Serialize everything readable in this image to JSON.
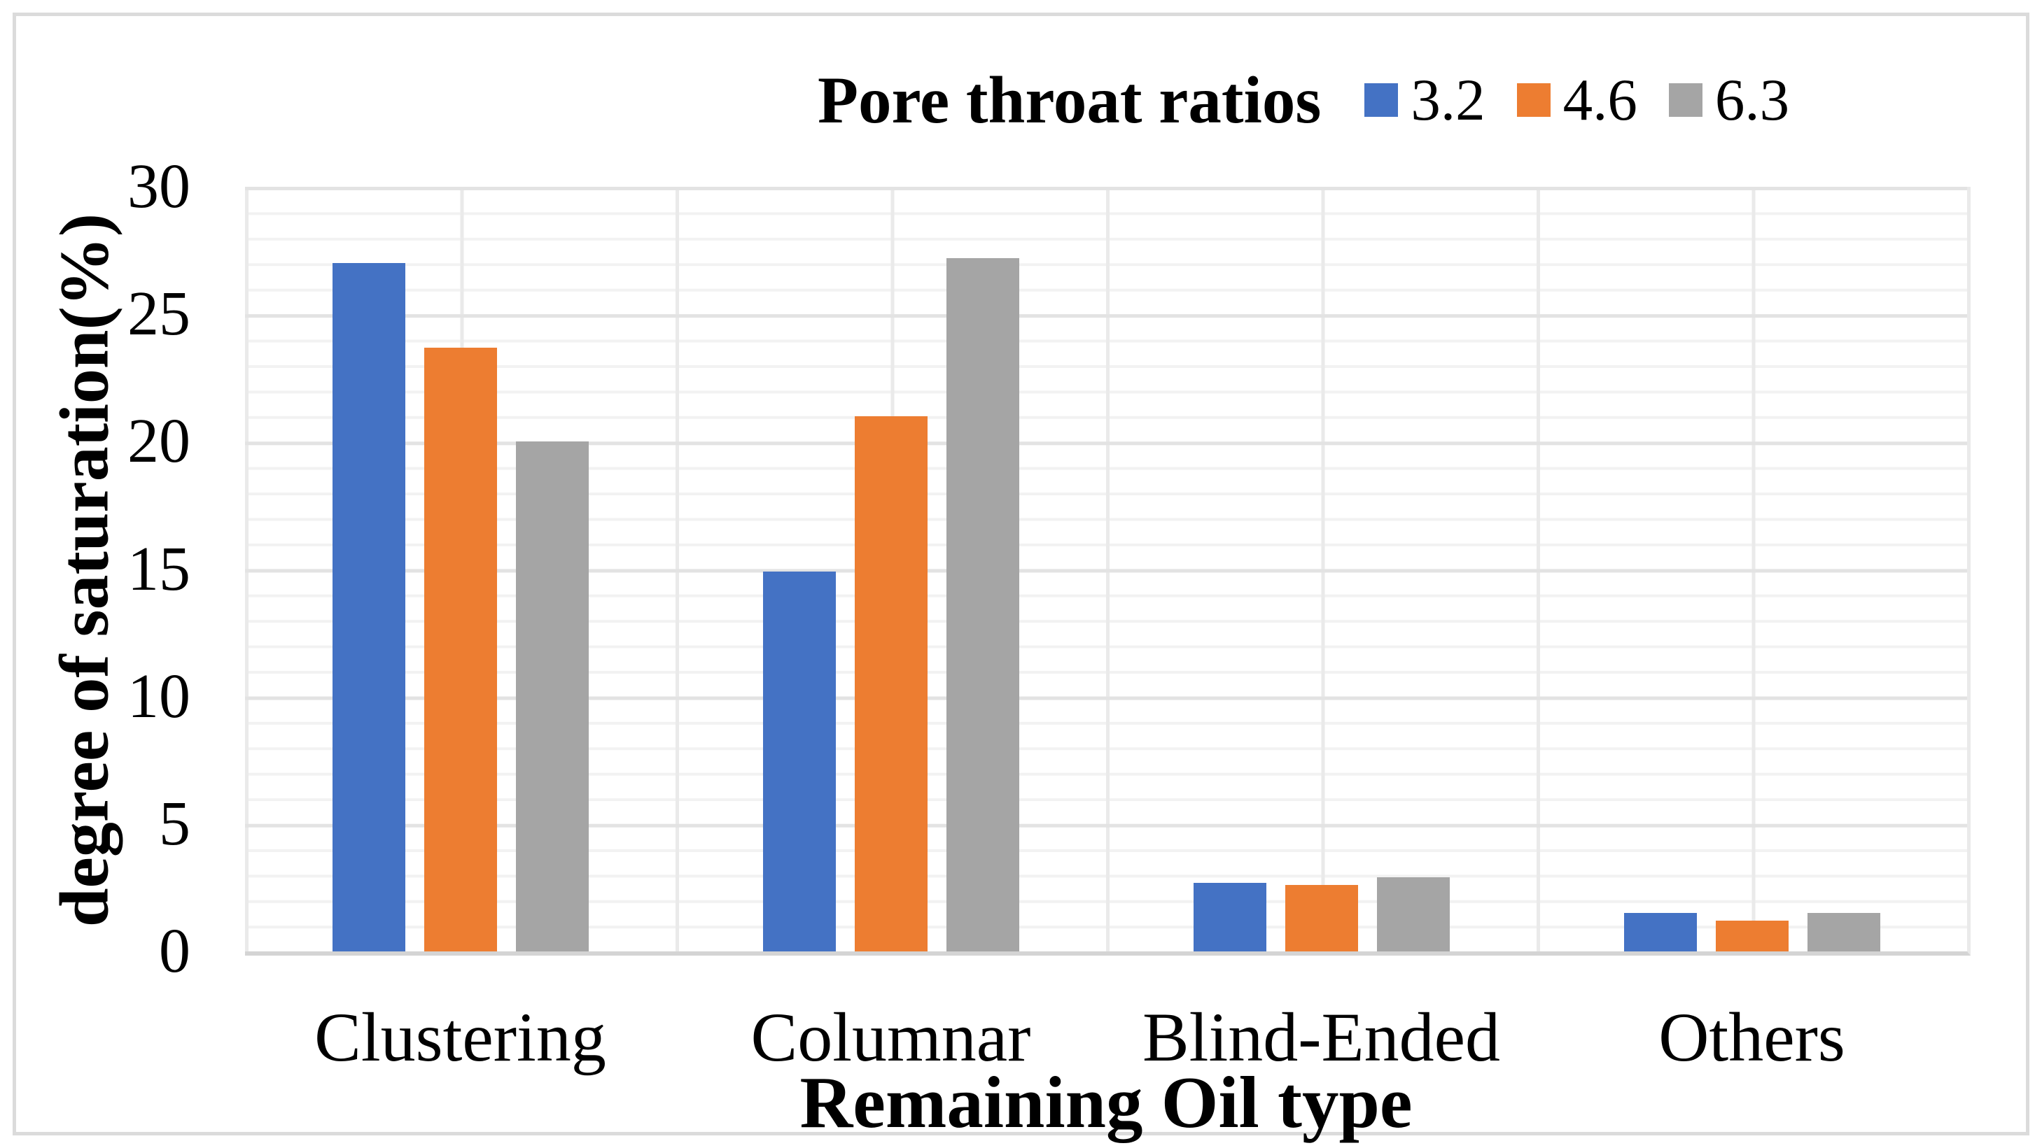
{
  "figure": {
    "background": "#FFFFFF",
    "border_color": "#DBDBDB"
  },
  "chart_data": {
    "type": "bar",
    "title": "Pore throat ratios",
    "legend_position": "top",
    "categories": [
      "Clustering",
      "Columnar",
      "Blind-Ended",
      "Others"
    ],
    "series": [
      {
        "name": "3.2",
        "color": "#4472C4",
        "values": [
          27.0,
          14.9,
          2.7,
          1.5
        ]
      },
      {
        "name": "4.6",
        "color": "#ED7D31",
        "values": [
          23.7,
          21.0,
          2.6,
          1.2
        ]
      },
      {
        "name": "6.3",
        "color": "#A5A5A5",
        "values": [
          20.0,
          27.2,
          2.9,
          1.5
        ]
      }
    ],
    "xlabel": "Remaining Oil type",
    "ylabel": "degree of saturation(%)",
    "ylim": [
      0,
      30
    ],
    "yticks": [
      0,
      5,
      10,
      15,
      20,
      25,
      30
    ],
    "grid": {
      "horizontal_minor_step": 1,
      "horizontal_major_step": 5,
      "vertical_divisions_per_category": 2
    }
  }
}
